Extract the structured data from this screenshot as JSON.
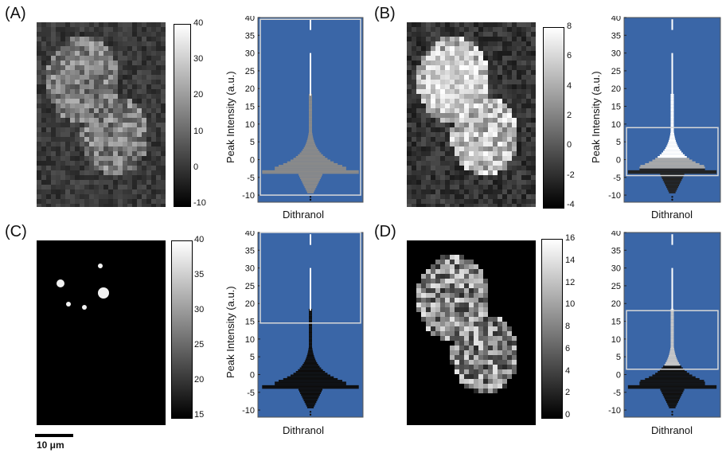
{
  "figure": {
    "panels": [
      {
        "label": "(A)",
        "cbar_ticks": [
          "40",
          "30",
          "20",
          "10",
          "0",
          "-10"
        ],
        "ylabel": "Peak Intensity (a.u.)",
        "xlabel": "Dithranol",
        "image_style": "dim"
      },
      {
        "label": "(B)",
        "cbar_ticks": [
          "8",
          "6",
          "4",
          "2",
          "0",
          "-2",
          "-4"
        ],
        "ylabel": "Peak Intensity (a.u.)",
        "xlabel": "Dithranol",
        "image_style": "bright"
      },
      {
        "label": "(C)",
        "cbar_ticks": [
          "40",
          "35",
          "30",
          "25",
          "20",
          "15"
        ],
        "ylabel": "Peak Intensity (a.u.)",
        "xlabel": "Dithranol",
        "image_style": "dark"
      },
      {
        "label": "(D)",
        "cbar_ticks": [
          "16",
          "14",
          "12",
          "10",
          "8",
          "6",
          "4",
          "2",
          "0"
        ],
        "ylabel": "",
        "xlabel": "Dithranol",
        "image_style": "cell"
      }
    ],
    "scalebar": {
      "label": "10 μm"
    },
    "plot_bg": "#3a66a7"
  },
  "chart_data": [
    {
      "type": "scatter",
      "panel": "A",
      "ylim": [
        -12,
        40
      ],
      "yticks": [
        40,
        35,
        30,
        25,
        20,
        15,
        10,
        5,
        0,
        -5,
        -10
      ],
      "xlabel": "Dithranol",
      "ylabel": "Peak Intensity (a.u.)",
      "selection_range": [
        -10,
        39.5
      ],
      "distribution_color": "#8a8a8a"
    },
    {
      "type": "scatter",
      "panel": "B",
      "ylim": [
        -12,
        40
      ],
      "yticks": [
        40,
        35,
        30,
        25,
        20,
        15,
        10,
        5,
        0,
        -5,
        -10
      ],
      "xlabel": "Dithranol",
      "ylabel": "Peak Intensity (a.u.)",
      "selection_range": [
        -4.5,
        9
      ],
      "distribution_color": "#ffffff"
    },
    {
      "type": "scatter",
      "panel": "C",
      "ylim": [
        -12,
        40
      ],
      "yticks": [
        40,
        35,
        30,
        25,
        20,
        15,
        10,
        5,
        0,
        -5,
        -10
      ],
      "xlabel": "Dithranol",
      "ylabel": "Peak Intensity (a.u.)",
      "selection_range": [
        14.5,
        40
      ],
      "distribution_color": "#111111"
    },
    {
      "type": "scatter",
      "panel": "D",
      "ylim": [
        -12,
        40
      ],
      "yticks": [
        40,
        35,
        30,
        25,
        20,
        15,
        10,
        5,
        0,
        -5,
        -10
      ],
      "xlabel": "Dithranol",
      "ylabel": "",
      "selection_range": [
        1.5,
        18
      ],
      "distribution_color": "#aaaaaa"
    }
  ]
}
